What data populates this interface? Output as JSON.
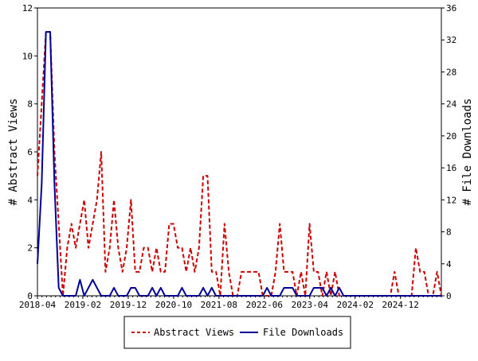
{
  "chart_data": {
    "type": "line",
    "xlabel": "",
    "y_left_label": "# Abstract Views",
    "y_right_label": "# File Downloads",
    "y_left_range": [
      0,
      12
    ],
    "y_right_range": [
      0,
      36
    ],
    "y_left_ticks": [
      "0",
      "2",
      "4",
      "6",
      "8",
      "10",
      "12"
    ],
    "y_right_ticks": [
      "0",
      "4",
      "8",
      "12",
      "16",
      "20",
      "24",
      "28",
      "32",
      "36"
    ],
    "x_ticks": [
      "2018-04",
      "2019-02",
      "2019-12",
      "2020-10",
      "2021-08",
      "2022-06",
      "2023-04",
      "2024-02",
      "2024-12"
    ],
    "x_start": "2018-04",
    "x_end": "2025-09",
    "grid": false,
    "legend_position": "bottom",
    "series": [
      {
        "name": "Abstract Views",
        "axis": "left",
        "color": "#cc0000",
        "style": "dashed",
        "values": [
          5,
          8,
          11,
          11,
          6,
          3,
          0,
          2,
          3,
          2,
          3,
          4,
          2,
          3,
          4,
          6,
          1,
          2,
          4,
          2,
          1,
          2,
          4,
          1,
          1,
          2,
          2,
          1,
          2,
          1,
          1,
          3,
          3,
          2,
          2,
          1,
          2,
          1,
          2,
          5,
          5,
          1,
          1,
          0,
          3,
          1,
          0,
          0,
          1,
          1,
          1,
          1,
          1,
          0,
          0,
          0,
          1,
          3,
          1,
          1,
          1,
          0,
          1,
          0,
          3,
          1,
          1,
          0,
          1,
          0,
          1,
          0,
          0,
          0,
          0,
          0,
          0,
          0,
          0,
          0,
          0,
          0,
          0,
          0,
          1,
          0,
          0,
          0,
          0,
          2,
          1,
          1,
          0,
          0,
          1,
          0
        ]
      },
      {
        "name": "File Downloads",
        "axis": "right",
        "color": "#000099",
        "style": "solid",
        "values": [
          4,
          14,
          33,
          33,
          14,
          1,
          0,
          0,
          0,
          0,
          2,
          0,
          1,
          2,
          1,
          0,
          0,
          0,
          1,
          0,
          0,
          0,
          1,
          1,
          0,
          0,
          0,
          1,
          0,
          1,
          0,
          0,
          0,
          0,
          1,
          0,
          0,
          0,
          0,
          1,
          0,
          1,
          0,
          0,
          0,
          0,
          0,
          0,
          0,
          0,
          0,
          0,
          0,
          0,
          1,
          0,
          0,
          0,
          1,
          1,
          1,
          0,
          0,
          0,
          0,
          1,
          1,
          1,
          0,
          1,
          0,
          1,
          0,
          0,
          0,
          0,
          0,
          0,
          0,
          0,
          0,
          0,
          0,
          0,
          0,
          0,
          0,
          0,
          0,
          0,
          0,
          0,
          0,
          0,
          0,
          0
        ]
      }
    ]
  }
}
